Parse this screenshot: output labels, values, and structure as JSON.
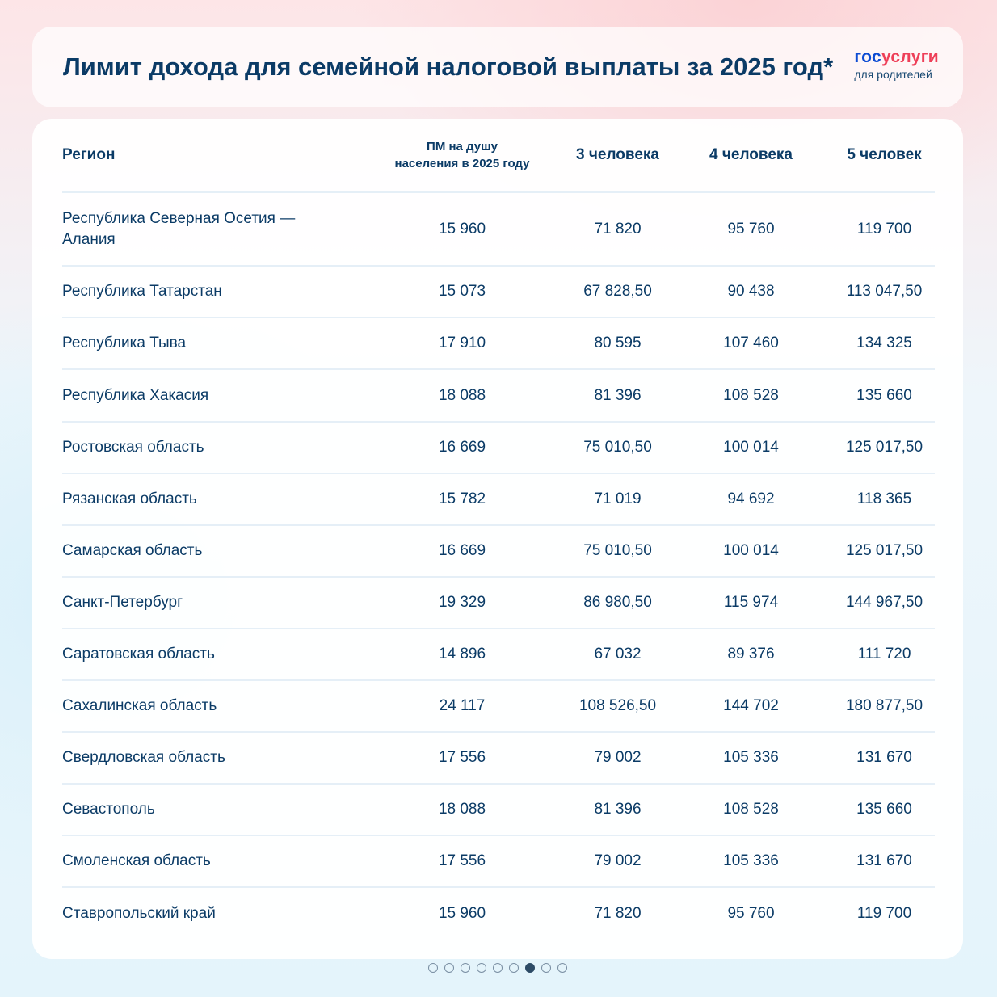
{
  "header": {
    "title": "Лимит дохода для семейной налоговой выплаты за 2025 год*",
    "logo_gos": "гос",
    "logo_uslugi": "услуги",
    "logo_sub": "для родителей"
  },
  "table": {
    "columns": [
      "Регион",
      "ПМ на душу населения в 2025 году",
      "3 человека",
      "4 человека",
      "5 человек"
    ],
    "pm_header_line1": "ПМ на душу",
    "pm_header_line2": "населения в 2025 году",
    "rows": [
      {
        "region": "Республика Северная Осетия — Алания",
        "pm": "15 960",
        "p3": "71 820",
        "p4": "95 760",
        "p5": "119 700"
      },
      {
        "region": "Республика Татарстан",
        "pm": "15 073",
        "p3": "67 828,50",
        "p4": "90 438",
        "p5": "113 047,50"
      },
      {
        "region": "Республика Тыва",
        "pm": "17 910",
        "p3": "80 595",
        "p4": "107 460",
        "p5": "134 325"
      },
      {
        "region": "Республика Хакасия",
        "pm": "18 088",
        "p3": "81 396",
        "p4": "108 528",
        "p5": "135 660"
      },
      {
        "region": "Ростовская область",
        "pm": "16 669",
        "p3": "75 010,50",
        "p4": "100 014",
        "p5": "125 017,50"
      },
      {
        "region": "Рязанская область",
        "pm": "15 782",
        "p3": "71 019",
        "p4": "94 692",
        "p5": "118 365"
      },
      {
        "region": "Самарская область",
        "pm": "16 669",
        "p3": "75 010,50",
        "p4": "100 014",
        "p5": "125 017,50"
      },
      {
        "region": "Санкт-Петербург",
        "pm": "19 329",
        "p3": "86 980,50",
        "p4": "115 974",
        "p5": "144 967,50"
      },
      {
        "region": "Саратовская область",
        "pm": "14 896",
        "p3": "67 032",
        "p4": "89 376",
        "p5": "111 720"
      },
      {
        "region": "Сахалинская область",
        "pm": "24 117",
        "p3": "108 526,50",
        "p4": "144 702",
        "p5": "180 877,50"
      },
      {
        "region": "Свердловская область",
        "pm": "17 556",
        "p3": "79 002",
        "p4": "105 336",
        "p5": "131 670"
      },
      {
        "region": "Севастополь",
        "pm": "18 088",
        "p3": "81 396",
        "p4": "108 528",
        "p5": "135 660"
      },
      {
        "region": "Смоленская область",
        "pm": "17 556",
        "p3": "79 002",
        "p4": "105 336",
        "p5": "131 670"
      },
      {
        "region": "Ставропольский край",
        "pm": "15 960",
        "p3": "71 820",
        "p4": "95 760",
        "p5": "119 700"
      }
    ]
  },
  "pagination": {
    "total": 9,
    "active_index": 6
  },
  "colors": {
    "text": "#0b3b66",
    "logo_blue": "#0d4cd3",
    "logo_red": "#ee3f58"
  }
}
